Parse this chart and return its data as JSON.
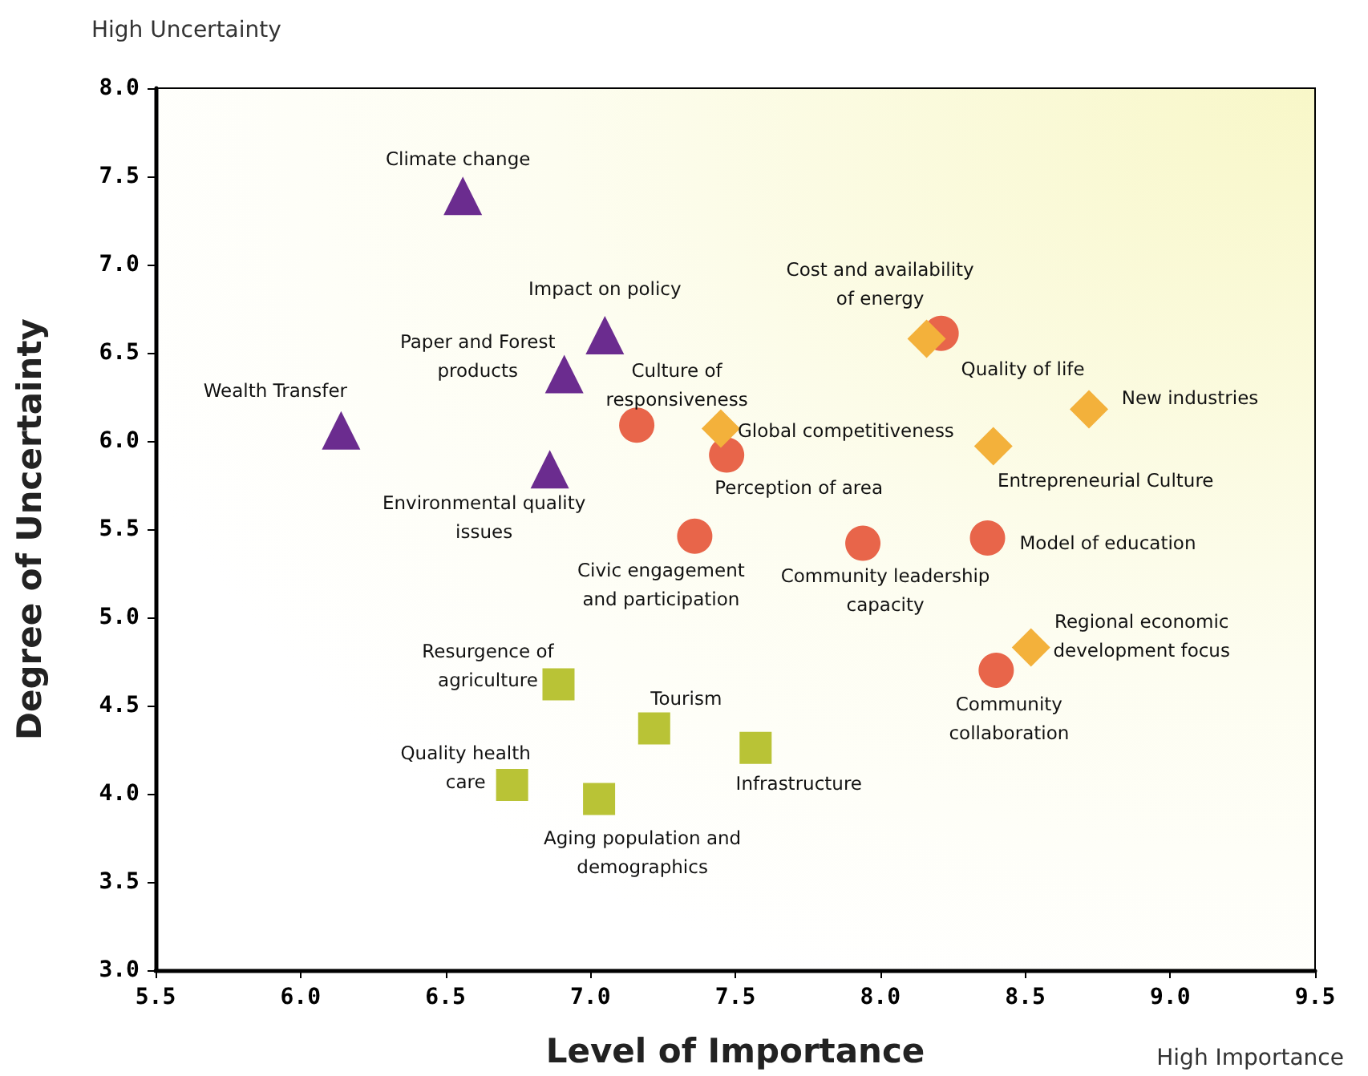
{
  "chart_data": {
    "type": "scatter",
    "xlabel": "Level of Importance",
    "ylabel": "Degree of Uncertainty",
    "xlim": [
      5.5,
      9.5
    ],
    "xticks": [
      {
        "value": 5.5,
        "label": "5.5"
      },
      {
        "value": 6,
        "label": "6.0"
      },
      {
        "value": 6.5,
        "label": "6.5"
      },
      {
        "value": 7,
        "label": "7.0"
      },
      {
        "value": 7.5,
        "label": "7.5"
      },
      {
        "value": 8,
        "label": "8.0"
      },
      {
        "value": 8.5,
        "label": "8.5"
      },
      {
        "value": 9,
        "label": "9.0"
      },
      {
        "value": 9.5,
        "label": "9.5"
      }
    ],
    "ylim": [
      3,
      8
    ],
    "yticks": [
      {
        "value": 3,
        "label": "3.0"
      },
      {
        "value": 3.5,
        "label": "3.5"
      },
      {
        "value": 4,
        "label": "4.0"
      },
      {
        "value": 4.5,
        "label": "4.5"
      },
      {
        "value": 5,
        "label": "5.0"
      },
      {
        "value": 5.5,
        "label": "5.5"
      },
      {
        "value": 6,
        "label": "6.0"
      },
      {
        "value": 6.5,
        "label": "6.5"
      },
      {
        "value": 7,
        "label": "7.0"
      },
      {
        "value": 7.5,
        "label": "7.5"
      },
      {
        "value": 8,
        "label": "8.0"
      }
    ],
    "grid": false,
    "series": [
      {
        "color": "#6b2c8f",
        "marker": "triangle",
        "x": [
          6.56,
          7.05,
          6.91,
          6.14,
          6.86
        ],
        "values": [
          7.39,
          6.6,
          6.38,
          6.06,
          5.84
        ]
      },
      {
        "color": "#e8654a",
        "marker": "circle",
        "x": [
          7.16,
          7.47,
          7.36,
          7.94,
          8.21,
          8.37,
          8.4
        ],
        "values": [
          6.09,
          5.92,
          5.46,
          5.42,
          6.61,
          5.45,
          4.7
        ]
      },
      {
        "color": "#f3b13b",
        "marker": "diamond",
        "x": [
          7.45,
          8.16,
          8.72,
          8.39,
          8.52
        ],
        "values": [
          6.07,
          6.58,
          6.18,
          5.97,
          4.83
        ]
      },
      {
        "color": "#b9c336",
        "marker": "square",
        "x": [
          6.89,
          7.22,
          7.57,
          6.73,
          7.03
        ],
        "values": [
          4.62,
          4.37,
          4.26,
          4.05,
          3.97
        ]
      }
    ],
    "annotations": [
      {
        "text": "Climate change",
        "x": 6.56,
        "y": 7.39
      },
      {
        "text": "Impact on policy",
        "x": 7.05,
        "y": 6.6
      },
      {
        "text": "Paper and Forest\nproducts",
        "x": 6.91,
        "y": 6.38
      },
      {
        "text": "Wealth Transfer",
        "x": 6.14,
        "y": 6.06
      },
      {
        "text": "Environmental quality\nissues",
        "x": 6.86,
        "y": 5.84
      },
      {
        "text": "Culture of\nresponsiveness",
        "x": 7.16,
        "y": 6.09
      },
      {
        "text": "Perception of area",
        "x": 7.47,
        "y": 5.92
      },
      {
        "text": "Civic engagement\nand participation",
        "x": 7.36,
        "y": 5.46
      },
      {
        "text": "Community leadership\ncapacity",
        "x": 7.94,
        "y": 5.42
      },
      {
        "text": "Cost and availability\nof energy",
        "x": 8.21,
        "y": 6.61
      },
      {
        "text": "Model of education",
        "x": 8.37,
        "y": 5.45
      },
      {
        "text": "Community\ncollaboration",
        "x": 8.4,
        "y": 4.7
      },
      {
        "text": "Global competitiveness",
        "x": 7.45,
        "y": 6.07
      },
      {
        "text": "Quality of life",
        "x": 8.16,
        "y": 6.58
      },
      {
        "text": "New industries",
        "x": 8.72,
        "y": 6.18
      },
      {
        "text": "Entrepreneurial Culture",
        "x": 8.39,
        "y": 5.97
      },
      {
        "text": "Regional economic\ndevelopment focus",
        "x": 8.52,
        "y": 4.83
      },
      {
        "text": "Resurgence of\nagriculture",
        "x": 6.89,
        "y": 4.62
      },
      {
        "text": "Tourism",
        "x": 7.22,
        "y": 4.37
      },
      {
        "text": "Infrastructure",
        "x": 7.57,
        "y": 4.26
      },
      {
        "text": "Quality health\ncare",
        "x": 6.73,
        "y": 4.05
      },
      {
        "text": "Aging population and\ndemographics",
        "x": 7.03,
        "y": 3.97
      },
      "High Uncertainty",
      "High Importance"
    ]
  }
}
